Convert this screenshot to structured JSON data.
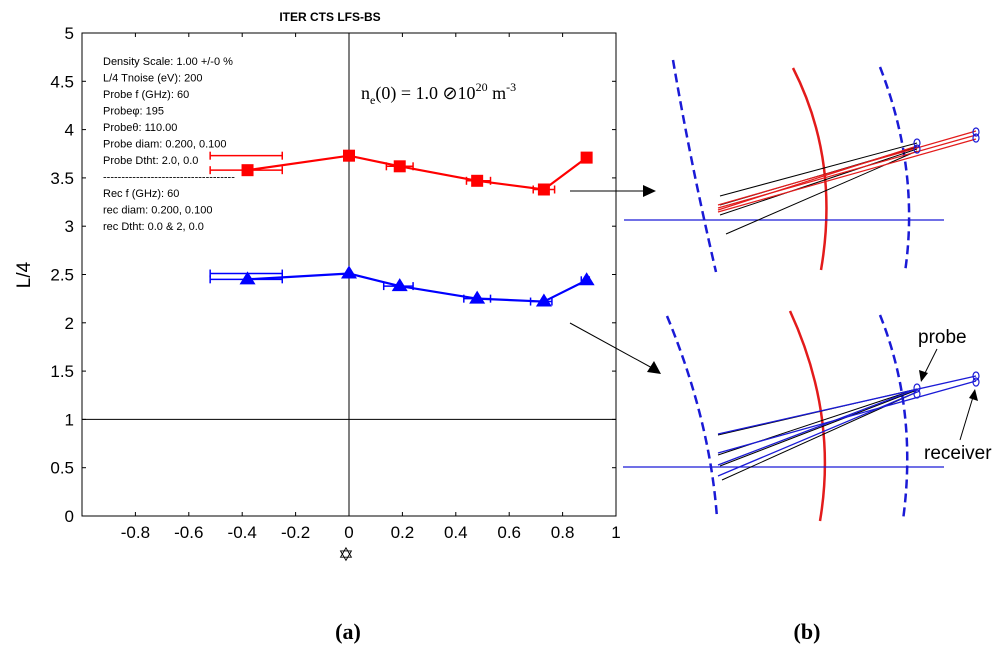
{
  "chart_data": {
    "type": "line",
    "title": "ITER CTS LFS-BS",
    "xlabel": "✡",
    "ylabel": "L/4",
    "xlim": [
      -1,
      1
    ],
    "ylim": [
      0,
      5
    ],
    "xticks": [
      "-0.8",
      "-0.6",
      "-0.4",
      "-0.2",
      "0",
      "0.2",
      "0.4",
      "0.6",
      "0.8",
      "1"
    ],
    "yticks": [
      "0",
      "0.5",
      "1",
      "1.5",
      "2",
      "2.5",
      "3",
      "3.5",
      "4",
      "4.5",
      "5"
    ],
    "reference_line_y": 1,
    "reference_line_x": 0,
    "grid": false,
    "series": [
      {
        "color": "#ff0000",
        "marker": "square",
        "x": [
          -0.38,
          0.0,
          0.19,
          0.48,
          0.73,
          0.89
        ],
        "y": [
          3.58,
          3.73,
          3.62,
          3.47,
          3.38,
          3.71
        ],
        "x_err_low": [
          -0.52,
          -0.52,
          0.14,
          0.44,
          0.69,
          0.88
        ],
        "x_err_high": [
          -0.25,
          -0.25,
          0.24,
          0.53,
          0.77,
          0.9
        ]
      },
      {
        "color": "#0000ff",
        "marker": "triangle",
        "x": [
          -0.38,
          0.0,
          0.19,
          0.48,
          0.73,
          0.89
        ],
        "y": [
          2.45,
          2.51,
          2.38,
          2.25,
          2.22,
          2.44
        ],
        "x_err_low": [
          -0.52,
          -0.52,
          0.13,
          0.43,
          0.68,
          0.87
        ],
        "x_err_high": [
          -0.25,
          -0.25,
          0.24,
          0.53,
          0.76,
          0.9
        ]
      }
    ],
    "annotations": [
      "Density Scale: 1.00 +/-0 %",
      "L/4 Tnoise (eV): 200",
      "Probe f (GHz): 60",
      "Probeφ: 195",
      "Probeθ: 110.00",
      "Probe diam: 0.200,  0.100",
      "Probe Dtht: 2.0,  0.0",
      "------------------------------------",
      "Rec f (GHz): 60",
      "rec diam: 0.200,  0.100",
      "rec Dtht: 0.0 & 2,  0.0"
    ],
    "formula": {
      "lhs": "n",
      "sub": "e",
      "mid": "(0) = 1.0 ⊘10",
      "exp": "20",
      "unit": " m",
      "unit_exp": "-3"
    }
  },
  "diagram": {
    "label_probe": "probe",
    "label_receiver": "receiver",
    "colors": {
      "red": "#e31b1b",
      "blue": "#1a1ad6",
      "black": "#000000"
    }
  },
  "captions": {
    "a": "(a)",
    "b": "(b)"
  }
}
